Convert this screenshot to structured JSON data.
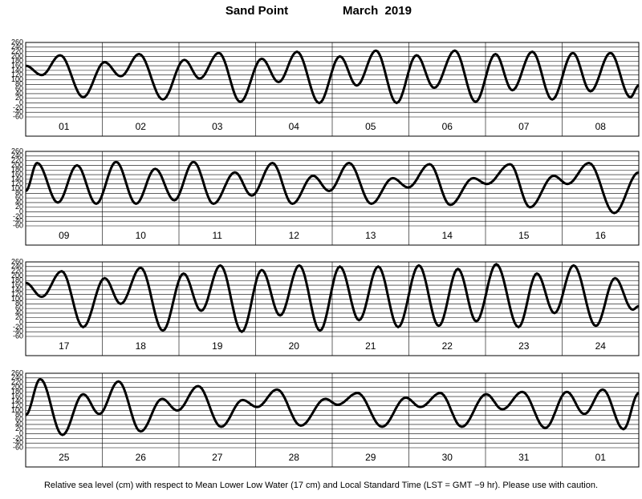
{
  "title": "Sand Point",
  "subtitle": "March  2019",
  "note": "Relative sea level (cm) with respect to Mean Lower Low Water (17 cm) and Local Standard Time (LST = GMT −9 hr). Please use with caution.",
  "chart_data": [
    {
      "type": "line",
      "categories": [
        "01",
        "02",
        "03",
        "04",
        "05",
        "06",
        "07",
        "08"
      ],
      "x": [
        0,
        0.21,
        0.45,
        0.75,
        1.03,
        1.24,
        1.48,
        1.79,
        2.07,
        2.27,
        2.52,
        2.8,
        3.08,
        3.3,
        3.54,
        3.83,
        4.1,
        4.32,
        4.57,
        4.84,
        5.1,
        5.33,
        5.6,
        5.87,
        6.13,
        6.35,
        6.61,
        6.87,
        7.14,
        7.37,
        7.63,
        7.89,
        8
      ],
      "series": [
        {
          "color": "#000000",
          "values": [
            160,
            120,
            205,
            25,
            175,
            115,
            210,
            15,
            185,
            105,
            215,
            5,
            190,
            90,
            220,
            0,
            200,
            75,
            225,
            0,
            205,
            65,
            225,
            5,
            210,
            55,
            220,
            15,
            215,
            50,
            215,
            25,
            75
          ]
        }
      ],
      "xlim": [
        0,
        8
      ],
      "ylim": [
        -60,
        260
      ],
      "yticks": [
        260,
        240,
        220,
        200,
        180,
        160,
        140,
        120,
        100,
        80,
        60,
        40,
        20,
        0,
        -20,
        -40,
        -60
      ],
      "grid": true
    },
    {
      "type": "line",
      "categories": [
        "09",
        "10",
        "11",
        "12",
        "13",
        "14",
        "15",
        "16"
      ],
      "x": [
        0,
        0.15,
        0.42,
        0.67,
        0.92,
        1.18,
        1.44,
        1.69,
        1.94,
        2.19,
        2.45,
        2.73,
        2.95,
        3.22,
        3.48,
        3.75,
        3.96,
        4.22,
        4.51,
        4.79,
        4.99,
        5.27,
        5.54,
        5.84,
        6.02,
        6.32,
        6.58,
        6.89,
        7.07,
        7.35,
        7.68,
        8
      ],
      "series": [
        {
          "color": "#000000",
          "values": [
            90,
            210,
            40,
            200,
            35,
            215,
            35,
            185,
            50,
            215,
            35,
            170,
            70,
            210,
            35,
            155,
            90,
            210,
            35,
            145,
            105,
            205,
            30,
            145,
            120,
            205,
            20,
            155,
            120,
            210,
            -5,
            170
          ]
        }
      ],
      "xlim": [
        0,
        8
      ],
      "ylim": [
        -60,
        260
      ],
      "yticks": [
        260,
        240,
        220,
        200,
        180,
        160,
        140,
        120,
        100,
        80,
        60,
        40,
        20,
        0,
        -20,
        -40,
        -60
      ],
      "grid": true
    },
    {
      "type": "line",
      "categories": [
        "17",
        "18",
        "19",
        "20",
        "21",
        "22",
        "23",
        "24"
      ],
      "x": [
        0,
        0.21,
        0.47,
        0.75,
        1.03,
        1.24,
        1.5,
        1.79,
        2.06,
        2.29,
        2.54,
        2.82,
        3.08,
        3.32,
        3.57,
        3.84,
        4.1,
        4.35,
        4.6,
        4.86,
        5.13,
        5.39,
        5.64,
        5.88,
        6.14,
        6.43,
        6.67,
        6.9,
        7.15,
        7.44,
        7.69,
        7.92,
        8
      ],
      "series": [
        {
          "color": "#000000",
          "values": [
            170,
            110,
            220,
            -20,
            190,
            80,
            235,
            -35,
            210,
            50,
            245,
            -40,
            225,
            30,
            245,
            -35,
            240,
            10,
            240,
            -20,
            245,
            -15,
            230,
            5,
            250,
            -20,
            210,
            40,
            245,
            -15,
            190,
            55,
            70
          ]
        }
      ],
      "xlim": [
        0,
        8
      ],
      "ylim": [
        -60,
        260
      ],
      "yticks": [
        260,
        240,
        220,
        200,
        180,
        160,
        140,
        120,
        100,
        80,
        60,
        40,
        20,
        0,
        -20,
        -40,
        -60
      ],
      "grid": true
    },
    {
      "type": "line",
      "categories": [
        "25",
        "26",
        "27",
        "28",
        "29",
        "30",
        "31",
        "01"
      ],
      "x": [
        0,
        0.19,
        0.48,
        0.75,
        0.96,
        1.21,
        1.5,
        1.78,
        1.98,
        2.25,
        2.55,
        2.83,
        3.02,
        3.28,
        3.59,
        3.91,
        4.07,
        4.33,
        4.65,
        4.96,
        5.15,
        5.41,
        5.69,
        6.01,
        6.22,
        6.48,
        6.78,
        7.06,
        7.29,
        7.53,
        7.8,
        8
      ],
      "series": [
        {
          "color": "#000000",
          "values": [
            80,
            235,
            -5,
            170,
            85,
            225,
            10,
            150,
            100,
            205,
            30,
            145,
            115,
            190,
            35,
            150,
            125,
            175,
            30,
            155,
            115,
            175,
            30,
            170,
            105,
            180,
            25,
            180,
            85,
            190,
            20,
            175
          ]
        }
      ],
      "xlim": [
        0,
        8
      ],
      "ylim": [
        -60,
        260
      ],
      "yticks": [
        260,
        240,
        220,
        200,
        180,
        160,
        140,
        120,
        100,
        80,
        60,
        40,
        20,
        0,
        -20,
        -40,
        -60
      ],
      "grid": true
    }
  ]
}
